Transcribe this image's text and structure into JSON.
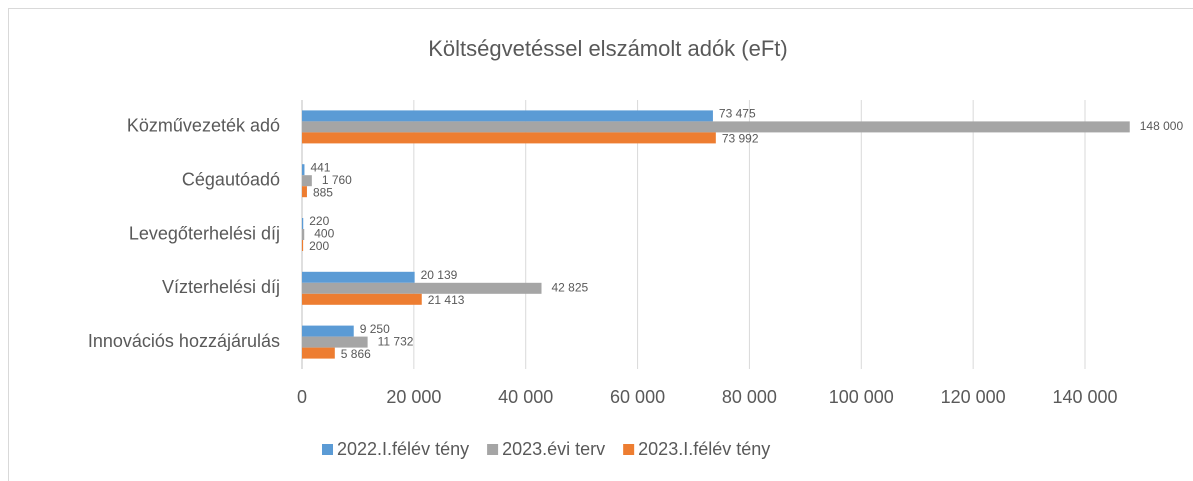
{
  "chart_data": {
    "type": "barh",
    "title": "Költségvetéssel elszámolt adók (eFt)",
    "categories": [
      "Közművezeték adó",
      "Cégautóadó",
      "Levegőterhelési díj",
      "Vízterhelési díj",
      "Innovációs hozzájárulás"
    ],
    "series": [
      {
        "name": "2022.I.félév tény",
        "color": "#5b9bd5",
        "values": [
          73475,
          441,
          220,
          20139,
          9250
        ],
        "value_labels": [
          "73 475",
          "441",
          "220",
          "20 139",
          "9 250"
        ]
      },
      {
        "name": "2023.évi terv",
        "color": "#a5a5a5",
        "values": [
          148000,
          1760,
          400,
          42825,
          11732
        ],
        "value_labels": [
          "148 000",
          "1 760",
          "400",
          "42 825",
          "11 732"
        ]
      },
      {
        "name": "2023.I.félév tény",
        "color": "#ed7d31",
        "values": [
          73992,
          885,
          200,
          21413,
          5866
        ],
        "value_labels": [
          "73 992",
          "885",
          "200",
          "21 413",
          "5 866"
        ]
      }
    ],
    "xlim": [
      0,
      140000
    ],
    "xticks": [
      0,
      {
        "value": 20000,
        "label": "20 000"
      },
      {
        "value": 40000,
        "label": "40 000"
      },
      {
        "value": 60000,
        "label": "60 000"
      },
      {
        "value": 80000,
        "label": "80 000"
      },
      {
        "value": 100000,
        "label": "100 000"
      },
      {
        "value": 120000,
        "label": "120 000"
      },
      {
        "value": 140000,
        "label": "140 000"
      }
    ],
    "grid": true,
    "legend": "bottom"
  }
}
